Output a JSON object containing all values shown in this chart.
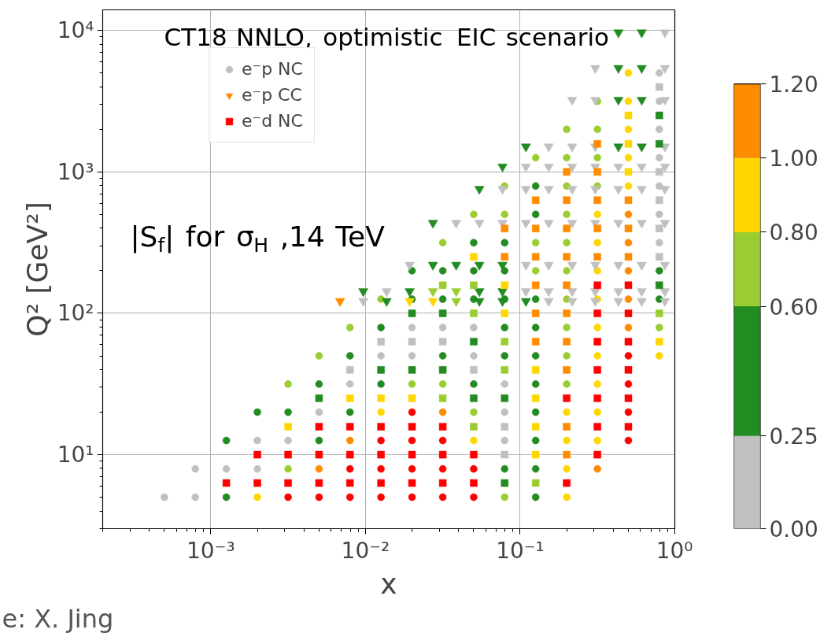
{
  "chart_data": {
    "type": "scatter",
    "annotations": [
      "CT18 NNLO, optimistic EIC scenario",
      "|S$_{f}$| for σ$_{H}$ ,14 TeV",
      "e: X. Jing"
    ],
    "xlabel": "x",
    "ylabel": "Q² [GeV²]",
    "log": "xy",
    "grid": true,
    "legend": "top left",
    "xlim": [
      0.0002,
      1
    ],
    "ylim": [
      3,
      14000
    ],
    "xticks": [
      {
        "value": 0.001,
        "label": "10⁻³"
      },
      {
        "value": 0.01,
        "label": "10⁻²"
      },
      {
        "value": 0.1,
        "label": "10⁻¹"
      },
      {
        "value": 1,
        "label": "10⁰"
      }
    ],
    "yticks": [
      {
        "value": 10,
        "label": "10¹"
      },
      {
        "value": 100,
        "label": "10²"
      },
      {
        "value": 1000,
        "label": "10³"
      },
      {
        "value": 10000,
        "label": "10⁴"
      }
    ],
    "clim": [
      0,
      1.2
    ],
    "cticks": [
      {
        "value": 0,
        "label": "0.00"
      },
      {
        "value": 0.25,
        "label": "0.25"
      },
      {
        "value": 0.6,
        "label": "0.60"
      },
      {
        "value": 0.8,
        "label": "0.80"
      },
      {
        "value": 1.0,
        "label": "1.00"
      },
      {
        "value": 1.2,
        "label": "1.20"
      }
    ],
    "colors": [
      "#c0c0c0",
      "#228b22",
      "#9acd32",
      "#ffd700",
      "#ff8c00"
    ],
    "series": [
      {
        "name": "e⁻p NC",
        "marker": "circle",
        "x": [
          0.000501,
          0.000794,
          0.00126,
          0.002,
          0.00316,
          0.00501,
          0.00794,
          0.0126,
          0.02,
          0.0316,
          0.0501,
          0.0794,
          0.126,
          0.2,
          0.000794,
          0.00126,
          0.002,
          0.00316,
          0.00501,
          0.00794,
          0.0126,
          0.02,
          0.0316,
          0.0501,
          0.0794,
          0.126,
          0.2,
          0.316,
          0.00126,
          0.002,
          0.00316,
          0.00501,
          0.00794,
          0.0126,
          0.02,
          0.0316,
          0.0501,
          0.0794,
          0.126,
          0.2,
          0.316,
          0.501,
          0.002,
          0.00316,
          0.00501,
          0.00794,
          0.0126,
          0.02,
          0.0316,
          0.0501,
          0.0794,
          0.126,
          0.2,
          0.316,
          0.501,
          0.00316,
          0.00501,
          0.00794,
          0.0126,
          0.02,
          0.0316,
          0.0501,
          0.0794,
          0.126,
          0.2,
          0.316,
          0.501,
          0.00501,
          0.00794,
          0.0126,
          0.02,
          0.0316,
          0.0501,
          0.0794,
          0.126,
          0.2,
          0.316,
          0.501,
          0.794,
          0.00794,
          0.0126,
          0.02,
          0.0316,
          0.0501,
          0.0794,
          0.126,
          0.2,
          0.316,
          0.501,
          0.794,
          0.0126,
          0.02,
          0.0316,
          0.0501,
          0.0794,
          0.126,
          0.2,
          0.316,
          0.501,
          0.794,
          0.02,
          0.0316,
          0.0501,
          0.0794,
          0.126,
          0.2,
          0.316,
          0.501,
          0.794,
          0.0316,
          0.0501,
          0.0794,
          0.126,
          0.2,
          0.316,
          0.501,
          0.794,
          0.0501,
          0.0794,
          0.126,
          0.2,
          0.316,
          0.501,
          0.794,
          0.0794,
          0.126,
          0.2,
          0.316,
          0.501,
          0.794,
          0.126,
          0.2,
          0.316,
          0.501,
          0.794,
          0.2,
          0.316,
          0.501,
          0.794,
          0.316,
          0.501,
          0.794,
          0.501,
          0.794
        ],
        "values": [
          5.01,
          5.01,
          5.01,
          5.01,
          5.01,
          5.01,
          5.01,
          5.01,
          5.01,
          5.01,
          5.01,
          5.01,
          5.01,
          5.01,
          7.94,
          7.94,
          7.94,
          7.94,
          7.94,
          7.94,
          7.94,
          7.94,
          7.94,
          7.94,
          7.94,
          7.94,
          7.94,
          7.94,
          12.6,
          12.6,
          12.6,
          12.6,
          12.6,
          12.6,
          12.6,
          12.6,
          12.6,
          12.6,
          12.6,
          12.6,
          12.6,
          12.6,
          20,
          20,
          20,
          20,
          20,
          20,
          20,
          20,
          20,
          20,
          20,
          20,
          20,
          31.6,
          31.6,
          31.6,
          31.6,
          31.6,
          31.6,
          31.6,
          31.6,
          31.6,
          31.6,
          31.6,
          31.6,
          50.1,
          50.1,
          50.1,
          50.1,
          50.1,
          50.1,
          50.1,
          50.1,
          50.1,
          50.1,
          50.1,
          50.1,
          79.4,
          79.4,
          79.4,
          79.4,
          79.4,
          79.4,
          79.4,
          79.4,
          79.4,
          79.4,
          79.4,
          126,
          126,
          126,
          126,
          126,
          126,
          126,
          126,
          126,
          126,
          200,
          200,
          200,
          200,
          200,
          200,
          200,
          200,
          200,
          316,
          316,
          316,
          316,
          316,
          316,
          316,
          316,
          501,
          501,
          501,
          501,
          501,
          501,
          501,
          794,
          794,
          794,
          794,
          794,
          794,
          1260,
          1260,
          1260,
          1260,
          1260,
          2000,
          2000,
          2000,
          2000,
          3160,
          3160,
          3160,
          5010,
          5010
        ],
        "colors": [
          "#c0c0c0",
          "#c0c0c0",
          "#228b22",
          "#ffd700",
          "#ff0000",
          "#ff0000",
          "#ff0000",
          "#ff0000",
          "#ff0000",
          "#ff0000",
          "#ff0000",
          "#9acd32",
          "#228b22",
          "#ffd700",
          "#c0c0c0",
          "#c0c0c0",
          "#c0c0c0",
          "#9acd32",
          "#ff8c00",
          "#ff0000",
          "#ff0000",
          "#ff0000",
          "#ff0000",
          "#ff0000",
          "#228b22",
          "#228b22",
          "#ffd700",
          "#ff8c00",
          "#228b22",
          "#c0c0c0",
          "#c0c0c0",
          "#228b22",
          "#ff8c00",
          "#ff0000",
          "#ff0000",
          "#ff0000",
          "#ffd700",
          "#c0c0c0",
          "#228b22",
          "#ffd700",
          "#ffd700",
          "#ff0000",
          "#228b22",
          "#228b22",
          "#c0c0c0",
          "#228b22",
          "#ffd700",
          "#ff0000",
          "#ff8c00",
          "#9acd32",
          "#c0c0c0",
          "#228b22",
          "#ffd700",
          "#ffd700",
          "#ff0000",
          "#9acd32",
          "#228b22",
          "#c0c0c0",
          "#228b22",
          "#9acd32",
          "#9acd32",
          "#228b22",
          "#c0c0c0",
          "#228b22",
          "#9acd32",
          "#ffd700",
          "#ff0000",
          "#9acd32",
          "#228b22",
          "#c0c0c0",
          "#c0c0c0",
          "#228b22",
          "#c0c0c0",
          "#228b22",
          "#228b22",
          "#9acd32",
          "#ffd700",
          "#ff0000",
          "#ffd700",
          "#9acd32",
          "#228b22",
          "#c0c0c0",
          "#c0c0c0",
          "#c0c0c0",
          "#228b22",
          "#228b22",
          "#9acd32",
          "#ffd700",
          "#ff8c00",
          "#9acd32",
          "#9acd32",
          "#228b22",
          "#228b22",
          "#228b22",
          "#228b22",
          "#228b22",
          "#9acd32",
          "#ffd700",
          "#ff8c00",
          "#228b22",
          "#228b22",
          "#228b22",
          "#228b22",
          "#228b22",
          "#9acd32",
          "#9acd32",
          "#ffd700",
          "#ff8c00",
          "#228b22",
          "#9acd32",
          "#228b22",
          "#228b22",
          "#9acd32",
          "#9acd32",
          "#ffd700",
          "#ff8c00",
          "#c0c0c0",
          "#9acd32",
          "#9acd32",
          "#228b22",
          "#9acd32",
          "#ffd700",
          "#ff8c00",
          "#c0c0c0",
          "#9acd32",
          "#228b22",
          "#9acd32",
          "#9acd32",
          "#ffd700",
          "#c0c0c0",
          "#9acd32",
          "#9acd32",
          "#9acd32",
          "#ffd700",
          "#c0c0c0",
          "#9acd32",
          "#9acd32",
          "#ffd700",
          "#c0c0c0",
          "#9acd32",
          "#ffd700",
          "#c0c0c0",
          "#ffd700",
          "#c0c0c0"
        ]
      },
      {
        "name": "e⁻p CC",
        "marker": "triangle",
        "x": [
          0.00685,
          0.00968,
          0.0137,
          0.0193,
          0.0273,
          0.0386,
          0.0545,
          0.0769,
          0.109,
          0.153,
          0.217,
          0.306,
          0.432,
          0.611,
          0.863,
          0.00968,
          0.0137,
          0.0193,
          0.0273,
          0.0386,
          0.0545,
          0.0769,
          0.109,
          0.153,
          0.217,
          0.306,
          0.432,
          0.611,
          0.863,
          0.0193,
          0.0273,
          0.0386,
          0.0545,
          0.0769,
          0.109,
          0.153,
          0.217,
          0.306,
          0.432,
          0.611,
          0.863,
          0.0273,
          0.0386,
          0.0545,
          0.0769,
          0.109,
          0.153,
          0.217,
          0.306,
          0.432,
          0.611,
          0.863,
          0.0545,
          0.0769,
          0.109,
          0.153,
          0.217,
          0.306,
          0.432,
          0.611,
          0.863,
          0.0769,
          0.109,
          0.153,
          0.217,
          0.306,
          0.432,
          0.611,
          0.863,
          0.109,
          0.153,
          0.217,
          0.306,
          0.432,
          0.611,
          0.863,
          0.217,
          0.306,
          0.432,
          0.611,
          0.863,
          0.306,
          0.432,
          0.611,
          0.863,
          0.432,
          0.611,
          0.863
        ],
        "values": [
          122,
          122,
          122,
          122,
          122,
          122,
          122,
          122,
          122,
          122,
          122,
          122,
          122,
          122,
          122,
          143,
          143,
          143,
          143,
          143,
          143,
          143,
          143,
          143,
          143,
          143,
          143,
          143,
          143,
          220,
          220,
          220,
          220,
          220,
          220,
          220,
          220,
          220,
          220,
          220,
          220,
          436,
          436,
          436,
          436,
          436,
          436,
          436,
          436,
          436,
          436,
          436,
          757,
          757,
          757,
          757,
          757,
          757,
          757,
          757,
          757,
          1090,
          1090,
          1090,
          1090,
          1090,
          1090,
          1090,
          1090,
          1510,
          1510,
          1510,
          1510,
          1510,
          1510,
          1510,
          3230,
          3230,
          3230,
          3230,
          3230,
          5420,
          5420,
          5420,
          5420,
          9680,
          9680,
          9680
        ],
        "colors": [
          "#ff8c00",
          "#c0c0c0",
          "#228b22",
          "#ffd700",
          "#ffd700",
          "#9acd32",
          "#228b22",
          "#228b22",
          "#228b22",
          "#c0c0c0",
          "#c0c0c0",
          "#c0c0c0",
          "#c0c0c0",
          "#c0c0c0",
          "#c0c0c0",
          "#228b22",
          "#c0c0c0",
          "#228b22",
          "#9acd32",
          "#9acd32",
          "#228b22",
          "#228b22",
          "#c0c0c0",
          "#c0c0c0",
          "#c0c0c0",
          "#c0c0c0",
          "#c0c0c0",
          "#c0c0c0",
          "#c0c0c0",
          "#c0c0c0",
          "#228b22",
          "#228b22",
          "#228b22",
          "#228b22",
          "#c0c0c0",
          "#c0c0c0",
          "#c0c0c0",
          "#c0c0c0",
          "#c0c0c0",
          "#c0c0c0",
          "#c0c0c0",
          "#228b22",
          "#c0c0c0",
          "#c0c0c0",
          "#c0c0c0",
          "#c0c0c0",
          "#c0c0c0",
          "#c0c0c0",
          "#c0c0c0",
          "#c0c0c0",
          "#c0c0c0",
          "#c0c0c0",
          "#228b22",
          "#c0c0c0",
          "#c0c0c0",
          "#c0c0c0",
          "#c0c0c0",
          "#c0c0c0",
          "#c0c0c0",
          "#c0c0c0",
          "#c0c0c0",
          "#228b22",
          "#c0c0c0",
          "#c0c0c0",
          "#c0c0c0",
          "#c0c0c0",
          "#c0c0c0",
          "#c0c0c0",
          "#c0c0c0",
          "#228b22",
          "#c0c0c0",
          "#c0c0c0",
          "#c0c0c0",
          "#228b22",
          "#228b22",
          "#c0c0c0",
          "#c0c0c0",
          "#c0c0c0",
          "#228b22",
          "#228b22",
          "#c0c0c0",
          "#c0c0c0",
          "#228b22",
          "#228b22",
          "#c0c0c0",
          "#228b22",
          "#228b22",
          "#c0c0c0"
        ]
      },
      {
        "name": "e⁻d NC",
        "marker": "square",
        "x": [
          0.00126,
          0.002,
          0.00316,
          0.00501,
          0.00794,
          0.0126,
          0.02,
          0.0316,
          0.0501,
          0.0794,
          0.126,
          0.2,
          0.002,
          0.00316,
          0.00501,
          0.00794,
          0.0126,
          0.02,
          0.0316,
          0.0501,
          0.0794,
          0.126,
          0.2,
          0.316,
          0.00316,
          0.00501,
          0.00794,
          0.0126,
          0.02,
          0.0316,
          0.0501,
          0.0794,
          0.126,
          0.2,
          0.316,
          0.501,
          0.00501,
          0.00794,
          0.0126,
          0.02,
          0.0316,
          0.0501,
          0.0794,
          0.126,
          0.2,
          0.316,
          0.501,
          0.00794,
          0.0126,
          0.02,
          0.0316,
          0.0501,
          0.0794,
          0.126,
          0.2,
          0.316,
          0.501,
          0.0126,
          0.02,
          0.0316,
          0.0501,
          0.0794,
          0.126,
          0.2,
          0.316,
          0.501,
          0.794,
          0.02,
          0.0316,
          0.0501,
          0.0794,
          0.126,
          0.2,
          0.316,
          0.501,
          0.794,
          0.0316,
          0.0501,
          0.0794,
          0.126,
          0.2,
          0.316,
          0.501,
          0.794,
          0.0501,
          0.0794,
          0.126,
          0.2,
          0.316,
          0.501,
          0.794,
          0.0794,
          0.126,
          0.2,
          0.316,
          0.501,
          0.794,
          0.126,
          0.2,
          0.316,
          0.501,
          0.794,
          0.2,
          0.316,
          0.501,
          0.794,
          0.316,
          0.501,
          0.794,
          0.501,
          0.794,
          0.794
        ],
        "values": [
          6.31,
          6.31,
          6.31,
          6.31,
          6.31,
          6.31,
          6.31,
          6.31,
          6.31,
          6.31,
          6.31,
          6.31,
          10,
          10,
          10,
          10,
          10,
          10,
          10,
          10,
          10,
          10,
          10,
          10,
          15.8,
          15.8,
          15.8,
          15.8,
          15.8,
          15.8,
          15.8,
          15.8,
          15.8,
          15.8,
          15.8,
          15.8,
          25.1,
          25.1,
          25.1,
          25.1,
          25.1,
          25.1,
          25.1,
          25.1,
          25.1,
          25.1,
          25.1,
          39.8,
          39.8,
          39.8,
          39.8,
          39.8,
          39.8,
          39.8,
          39.8,
          39.8,
          39.8,
          63.1,
          63.1,
          63.1,
          63.1,
          63.1,
          63.1,
          63.1,
          63.1,
          63.1,
          63.1,
          100,
          100,
          100,
          100,
          100,
          100,
          100,
          100,
          100,
          158,
          158,
          158,
          158,
          158,
          158,
          158,
          158,
          251,
          251,
          251,
          251,
          251,
          251,
          251,
          398,
          398,
          398,
          398,
          398,
          398,
          631,
          631,
          631,
          631,
          631,
          1000,
          1000,
          1000,
          1000,
          1580,
          1580,
          1580,
          2510,
          2510,
          3980
        ],
        "colors": [
          "#ff0000",
          "#ff0000",
          "#ff0000",
          "#ff0000",
          "#ff0000",
          "#ff0000",
          "#ff0000",
          "#ff0000",
          "#ff0000",
          "#228b22",
          "#9acd32",
          "#ff0000",
          "#ff0000",
          "#ff0000",
          "#ff0000",
          "#ff0000",
          "#ff0000",
          "#ff0000",
          "#ff0000",
          "#ff0000",
          "#c0c0c0",
          "#ffd700",
          "#ff8c00",
          "#ff0000",
          "#ffd700",
          "#ff0000",
          "#ff0000",
          "#ff0000",
          "#ff0000",
          "#ff0000",
          "#9acd32",
          "#c0c0c0",
          "#ffd700",
          "#ff8c00",
          "#ff0000",
          "#ff0000",
          "#228b22",
          "#ffd700",
          "#ffd700",
          "#ffd700",
          "#9acd32",
          "#228b22",
          "#228b22",
          "#ffd700",
          "#ff0000",
          "#ff0000",
          "#ff0000",
          "#c0c0c0",
          "#228b22",
          "#228b22",
          "#228b22",
          "#c0c0c0",
          "#9acd32",
          "#ffd700",
          "#ff8c00",
          "#ff0000",
          "#ff0000",
          "#c0c0c0",
          "#c0c0c0",
          "#c0c0c0",
          "#228b22",
          "#9acd32",
          "#ff8c00",
          "#ff8c00",
          "#ff0000",
          "#ff0000",
          "#ffd700",
          "#228b22",
          "#228b22",
          "#9acd32",
          "#ffd700",
          "#ff8c00",
          "#ff8c00",
          "#ff0000",
          "#ff0000",
          "#9acd32",
          "#9acd32",
          "#9acd32",
          "#ffd700",
          "#ff8c00",
          "#ff8c00",
          "#ff0000",
          "#ff0000",
          "#228b22",
          "#ffd700",
          "#ff8c00",
          "#ff8c00",
          "#ff8c00",
          "#ff8c00",
          "#ff8c00",
          "#c0c0c0",
          "#ff8c00",
          "#ff8c00",
          "#ff8c00",
          "#ff8c00",
          "#ff8c00",
          "#c0c0c0",
          "#ff8c00",
          "#ff8c00",
          "#ff8c00",
          "#ff8c00",
          "#c0c0c0",
          "#ff8c00",
          "#ff8c00",
          "#ffd700",
          "#c0c0c0",
          "#ff8c00",
          "#ffd700",
          "#228b22",
          "#ffd700",
          "#228b22",
          "#c0c0c0"
        ]
      }
    ]
  }
}
